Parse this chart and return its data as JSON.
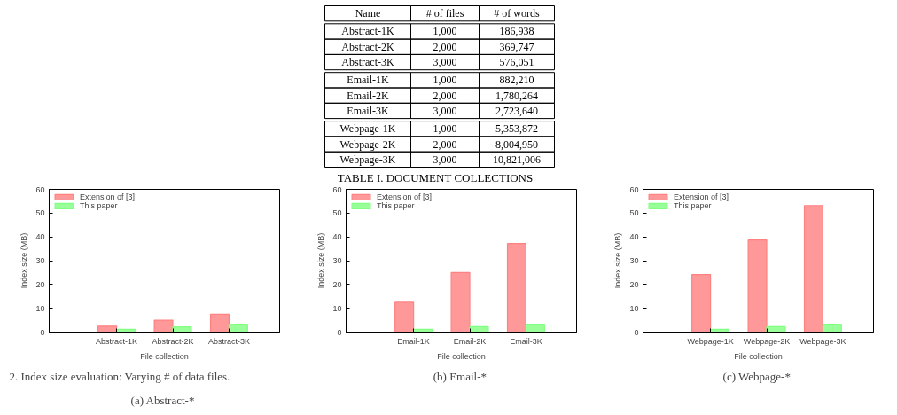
{
  "chart_data": [
    {
      "type": "other",
      "title": "TABLE I.    DOCUMENT COLLECTIONS",
      "annotations": [
        "Name",
        "# of files",
        "# of words",
        "Abstract-1K",
        "1,000",
        "186,938",
        "Abstract-2K",
        "2,000",
        "369,747",
        "Abstract-3K",
        "3,000",
        "576,051",
        "Email-1K",
        "1,000",
        "882,210",
        "Email-2K",
        "2,000",
        "1,780,264",
        "Email-3K",
        "3,000",
        "2,723,640",
        "Webpage-1K",
        "1,000",
        "5,353,872",
        "Webpage-2K",
        "2,000",
        "8,004,950",
        "Webpage-3K",
        "3,000",
        "10,821,006"
      ]
    },
    {
      "type": "bar",
      "title": "(a)  Abstract-*",
      "xlabel": "File collection",
      "ylabel": "Index size (MB)",
      "categories": [
        "Abstract-1K",
        "Abstract-2K",
        "Abstract-3K"
      ],
      "series": [
        {
          "name": "Extension of [3]",
          "color": "#ff9999",
          "values": [
            2.5,
            5,
            7.5
          ]
        },
        {
          "name": "This paper",
          "color": "#99ff99",
          "values": [
            1.2,
            2.2,
            3.3
          ]
        }
      ],
      "ylim": [
        0,
        60
      ],
      "yticks": [
        0,
        10,
        20,
        30,
        40,
        50,
        60
      ],
      "legend": "top left",
      "annotations": [
        "2.    Index size evaluation: Varying # of data files."
      ]
    },
    {
      "type": "bar",
      "title": "(b)  Email-*",
      "xlabel": "File collection",
      "ylabel": "Index size (MB)",
      "categories": [
        "Email-1K",
        "Email-2K",
        "Email-3K"
      ],
      "series": [
        {
          "name": "Extension of [3]",
          "color": "#ff9999",
          "values": [
            12.5,
            25,
            37.2
          ]
        },
        {
          "name": "This paper",
          "color": "#99ff99",
          "values": [
            1.2,
            2.3,
            3.3
          ]
        }
      ],
      "ylim": [
        0,
        60
      ],
      "yticks": [
        0,
        10,
        20,
        30,
        40,
        50,
        60
      ],
      "legend": "top left"
    },
    {
      "type": "bar",
      "title": "(c)  Webpage-*",
      "xlabel": "File collection",
      "ylabel": "Index size (MB)",
      "categories": [
        "Webpage-1K",
        "Webpage-2K",
        "Webpage-3K"
      ],
      "series": [
        {
          "name": "Extension of [3]",
          "color": "#ff9999",
          "values": [
            24.2,
            38.7,
            53.2
          ]
        },
        {
          "name": "This paper",
          "color": "#99ff99",
          "values": [
            1.2,
            2.3,
            3.3
          ]
        }
      ],
      "ylim": [
        0,
        60
      ],
      "yticks": [
        0,
        10,
        20,
        30,
        40,
        50,
        60
      ],
      "legend": "top left"
    }
  ]
}
